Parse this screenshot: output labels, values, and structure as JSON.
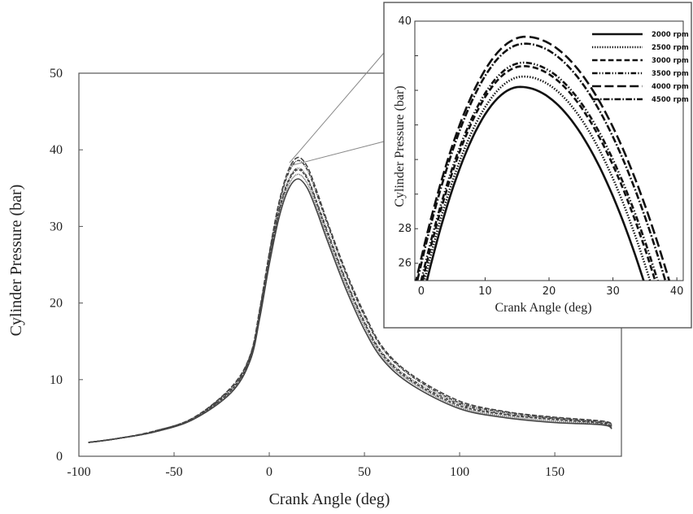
{
  "chart_data": [
    {
      "type": "line",
      "xlabel": "Crank Angle  (deg)",
      "ylabel": "Cylinder Pressure   (bar)",
      "xlim": [
        -100,
        185
      ],
      "ylim": [
        0,
        50
      ],
      "x_ticks": [
        "-100",
        "-50",
        "0",
        "50",
        "100",
        "150"
      ],
      "y_ticks": [
        "0",
        "10",
        "20",
        "30",
        "40",
        "50"
      ],
      "series": [
        {
          "name": "2000 rpm",
          "style": "solid",
          "peak_bar": 36.2,
          "x": [
            -95,
            -80,
            -60,
            -40,
            -20,
            -10,
            -5,
            0,
            5,
            10,
            15,
            20,
            25,
            30,
            40,
            50,
            60,
            75,
            100,
            125,
            150,
            175,
            180
          ],
          "y": [
            1.8,
            2.3,
            3.2,
            4.8,
            8.3,
            12.5,
            18,
            25,
            31,
            34.8,
            36.2,
            35,
            32,
            28.5,
            22,
            16.5,
            12.5,
            9.3,
            6.2,
            5,
            4.4,
            4.1,
            3.6
          ]
        },
        {
          "name": "2500 rpm",
          "style": "dotted",
          "peak_bar": 36.8,
          "x": [
            -95,
            -80,
            -60,
            -40,
            -20,
            -10,
            -5,
            0,
            5,
            10,
            15,
            20,
            25,
            30,
            40,
            50,
            60,
            75,
            100,
            125,
            150,
            175,
            180
          ],
          "y": [
            1.8,
            2.3,
            3.2,
            4.8,
            8.4,
            12.6,
            18.2,
            25.3,
            31.4,
            35.3,
            36.8,
            35.6,
            32.5,
            29,
            22.5,
            17,
            12.8,
            9.6,
            6.4,
            5.2,
            4.6,
            4.2,
            3.7
          ]
        },
        {
          "name": "3000 rpm",
          "style": "dashed",
          "peak_bar": 37.4,
          "x": [
            -95,
            -80,
            -60,
            -40,
            -20,
            -10,
            -5,
            0,
            5,
            10,
            15,
            20,
            25,
            30,
            40,
            50,
            60,
            75,
            100,
            125,
            150,
            175,
            180
          ],
          "y": [
            1.8,
            2.3,
            3.2,
            4.9,
            8.6,
            12.8,
            18.5,
            25.6,
            31.8,
            35.8,
            37.4,
            36.2,
            33,
            29.5,
            23,
            17.4,
            13.1,
            9.8,
            6.6,
            5.4,
            4.8,
            4.3,
            3.8
          ]
        },
        {
          "name": "3500 rpm",
          "style": "dash-dot-dot",
          "peak_bar": 37.6,
          "x": [
            -95,
            -80,
            -60,
            -40,
            -20,
            -10,
            -5,
            0,
            5,
            10,
            15,
            20,
            25,
            30,
            40,
            50,
            60,
            75,
            100,
            125,
            150,
            175,
            180
          ],
          "y": [
            1.8,
            2.3,
            3.2,
            4.9,
            8.7,
            12.9,
            18.6,
            25.8,
            32,
            36,
            37.6,
            36.4,
            33.2,
            29.8,
            23.2,
            17.6,
            13.3,
            10,
            6.8,
            5.5,
            4.9,
            4.4,
            3.9
          ]
        },
        {
          "name": "4000 rpm",
          "style": "long-dash",
          "peak_bar": 39.0,
          "x": [
            -95,
            -80,
            -60,
            -40,
            -20,
            -10,
            -5,
            0,
            5,
            10,
            15,
            20,
            25,
            30,
            40,
            50,
            60,
            75,
            100,
            125,
            150,
            175,
            180
          ],
          "y": [
            1.8,
            2.3,
            3.3,
            5,
            9,
            13.2,
            19.2,
            26.5,
            33,
            37.3,
            39,
            37.8,
            34.6,
            31,
            24.3,
            18.6,
            14.1,
            10.6,
            7.2,
            5.8,
            5.1,
            4.6,
            4.2
          ]
        },
        {
          "name": "4500 rpm",
          "style": "dash-dot",
          "peak_bar": 38.6,
          "x": [
            -95,
            -80,
            -60,
            -40,
            -20,
            -10,
            -5,
            0,
            5,
            10,
            15,
            20,
            25,
            30,
            40,
            50,
            60,
            75,
            100,
            125,
            150,
            175,
            180
          ],
          "y": [
            1.8,
            2.3,
            3.3,
            5,
            8.9,
            13.1,
            19,
            26.3,
            32.7,
            36.9,
            38.6,
            37.4,
            34.2,
            30.7,
            24,
            18.3,
            13.9,
            10.4,
            7,
            5.7,
            5,
            4.5,
            4.1
          ]
        }
      ]
    },
    {
      "type": "line",
      "role": "inset (zoom of peak region)",
      "xlabel": "Crank Angle (deg)",
      "ylabel": "Cylinder Pressure    (bar)",
      "xlim": [
        -1,
        41
      ],
      "ylim": [
        25,
        40
      ],
      "x_ticks": [
        "0",
        "10",
        "20",
        "30",
        "40"
      ],
      "y_ticks": [
        "26",
        "28",
        "30",
        "32",
        "34",
        "36",
        "38",
        "40"
      ],
      "y_ticks_printed": [
        "26",
        "28",
        "40"
      ],
      "legend_position": "top-right",
      "series": [
        {
          "name": "2000 rpm",
          "style": "solid",
          "peak_x": 15.5,
          "peak_y": 36.2,
          "x_at_25": [
            0.9,
            34.8
          ]
        },
        {
          "name": "2500 rpm",
          "style": "dotted",
          "peak_x": 16,
          "peak_y": 36.8,
          "x_at_25": [
            0.5,
            35.8
          ]
        },
        {
          "name": "3000 rpm",
          "style": "dashed",
          "peak_x": 16,
          "peak_y": 37.4,
          "x_at_25": [
            0.2,
            36.6
          ]
        },
        {
          "name": "3500 rpm",
          "style": "dash-dot-dot",
          "peak_x": 16,
          "peak_y": 37.6,
          "x_at_25": [
            0,
            37
          ]
        },
        {
          "name": "4000 rpm",
          "style": "long-dash",
          "peak_x": 16.3,
          "peak_y": 39.1,
          "x_at_25": [
            -0.8,
            38.8
          ]
        },
        {
          "name": "4500 rpm",
          "style": "dash-dot",
          "peak_x": 16.2,
          "peak_y": 38.7,
          "x_at_25": [
            -0.6,
            38.2
          ]
        }
      ]
    }
  ]
}
